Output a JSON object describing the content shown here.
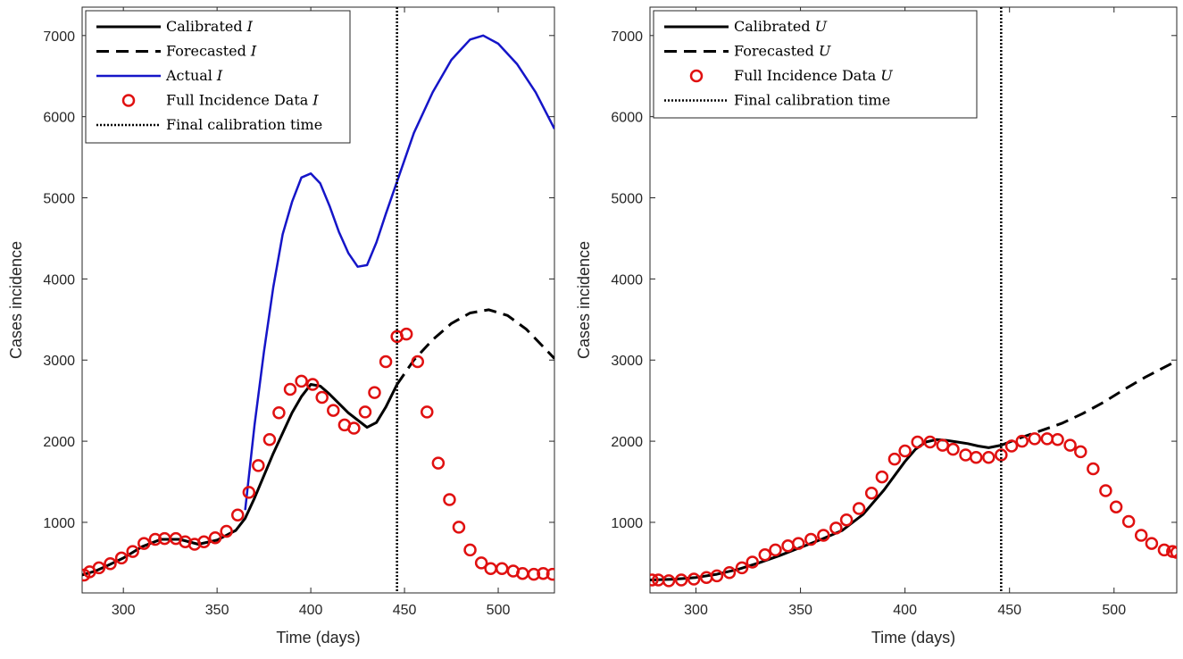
{
  "chart_data": [
    {
      "type": "line",
      "xlabel": "Time (days)",
      "ylabel": "Cases incidence",
      "xlim": [
        278,
        530
      ],
      "ylim": [
        130,
        7350
      ],
      "xticks": [
        300,
        350,
        400,
        450,
        500
      ],
      "yticks": [
        1000,
        2000,
        3000,
        4000,
        5000,
        6000,
        7000
      ],
      "final_calibration_time": 446,
      "legend_position": "top-left",
      "legend": [
        {
          "label": "Calibrated",
          "var": "I",
          "style": "solid-black"
        },
        {
          "label": "Forecasted",
          "var": "I",
          "style": "dashed-black"
        },
        {
          "label": "Actual",
          "var": "I",
          "style": "solid-blue"
        },
        {
          "label": "Full Incidence Data",
          "var": "I",
          "style": "red-circle"
        },
        {
          "label": "Final calibration time",
          "var": "",
          "style": "dotted-black"
        }
      ],
      "series": [
        {
          "name": "Calibrated I",
          "x": [
            278,
            285,
            290,
            300,
            310,
            320,
            330,
            340,
            350,
            360,
            365,
            370,
            380,
            390,
            395,
            400,
            405,
            410,
            420,
            430,
            435,
            440,
            446
          ],
          "y": [
            350,
            400,
            450,
            560,
            700,
            790,
            790,
            730,
            780,
            900,
            1050,
            1300,
            1850,
            2350,
            2550,
            2700,
            2680,
            2580,
            2350,
            2170,
            2230,
            2420,
            2700
          ]
        },
        {
          "name": "Forecasted I",
          "x": [
            446,
            455,
            465,
            475,
            485,
            495,
            505,
            515,
            530
          ],
          "y": [
            2700,
            3000,
            3250,
            3450,
            3580,
            3620,
            3550,
            3380,
            3020
          ]
        },
        {
          "name": "Actual I",
          "x": [
            365,
            370,
            375,
            380,
            385,
            390,
            395,
            400,
            405,
            410,
            415,
            420,
            425,
            430,
            435,
            440,
            446,
            455,
            465,
            475,
            485,
            492,
            500,
            510,
            520,
            530
          ],
          "y": [
            1150,
            2200,
            3100,
            3900,
            4550,
            4950,
            5250,
            5300,
            5180,
            4900,
            4580,
            4320,
            4150,
            4170,
            4450,
            4800,
            5200,
            5800,
            6300,
            6700,
            6950,
            7000,
            6900,
            6650,
            6300,
            5850
          ]
        },
        {
          "name": "Full Incidence Data I",
          "x": [
            279,
            282,
            287,
            293,
            299,
            305,
            311,
            317,
            322,
            328,
            333,
            338,
            343,
            349,
            355,
            361,
            367,
            372,
            378,
            383,
            389,
            395,
            401,
            406,
            412,
            418,
            423,
            429,
            434,
            440,
            446,
            451,
            457,
            462,
            468,
            474,
            479,
            485,
            491,
            496,
            502,
            508,
            513,
            519,
            524,
            529
          ],
          "y": [
            350,
            390,
            440,
            490,
            560,
            640,
            740,
            790,
            800,
            800,
            760,
            730,
            760,
            810,
            890,
            1090,
            1370,
            1700,
            2020,
            2350,
            2640,
            2740,
            2700,
            2540,
            2380,
            2200,
            2160,
            2360,
            2600,
            2980,
            3290,
            3320,
            2980,
            2360,
            1730,
            1280,
            940,
            660,
            500,
            430,
            430,
            400,
            370,
            360,
            370,
            360
          ]
        }
      ]
    },
    {
      "type": "line",
      "xlabel": "Time (days)",
      "ylabel": "Cases incidence",
      "xlim": [
        278,
        530
      ],
      "ylim": [
        130,
        7350
      ],
      "xticks": [
        300,
        350,
        400,
        450,
        500
      ],
      "yticks": [
        1000,
        2000,
        3000,
        4000,
        5000,
        6000,
        7000
      ],
      "final_calibration_time": 446,
      "legend_position": "top-left",
      "legend": [
        {
          "label": "Calibrated",
          "var": "U",
          "style": "solid-black"
        },
        {
          "label": "Forecasted",
          "var": "U",
          "style": "dashed-black"
        },
        {
          "label": "Full Incidence Data",
          "var": "U",
          "style": "red-circle"
        },
        {
          "label": "Final calibration time",
          "var": "",
          "style": "dotted-black"
        }
      ],
      "series": [
        {
          "name": "Calibrated U",
          "x": [
            278,
            290,
            300,
            310,
            320,
            330,
            340,
            350,
            360,
            370,
            380,
            390,
            400,
            405,
            410,
            415,
            420,
            425,
            430,
            435,
            440,
            446
          ],
          "y": [
            290,
            300,
            320,
            360,
            420,
            500,
            590,
            690,
            790,
            900,
            1100,
            1400,
            1750,
            1900,
            1990,
            2020,
            2010,
            1990,
            1970,
            1940,
            1920,
            1950
          ]
        },
        {
          "name": "Forecasted U",
          "x": [
            446,
            455,
            465,
            475,
            485,
            495,
            505,
            515,
            530
          ],
          "y": [
            1950,
            2040,
            2130,
            2220,
            2340,
            2480,
            2640,
            2790,
            2990
          ]
        },
        {
          "name": "Full Incidence Data U",
          "x": [
            279,
            282,
            287,
            293,
            299,
            305,
            310,
            316,
            322,
            327,
            333,
            338,
            344,
            349,
            355,
            361,
            367,
            372,
            378,
            384,
            389,
            395,
            400,
            406,
            412,
            418,
            423,
            429,
            434,
            440,
            446,
            451,
            456,
            462,
            468,
            473,
            479,
            484,
            490,
            496,
            501,
            507,
            513,
            518,
            524,
            528,
            530
          ],
          "y": [
            290,
            290,
            280,
            290,
            300,
            320,
            340,
            380,
            440,
            510,
            600,
            660,
            710,
            740,
            790,
            840,
            930,
            1030,
            1170,
            1360,
            1560,
            1780,
            1880,
            1990,
            1990,
            1950,
            1900,
            1830,
            1800,
            1800,
            1830,
            1940,
            2000,
            2030,
            2030,
            2020,
            1950,
            1870,
            1660,
            1390,
            1190,
            1010,
            840,
            740,
            660,
            640,
            630
          ]
        }
      ]
    }
  ]
}
